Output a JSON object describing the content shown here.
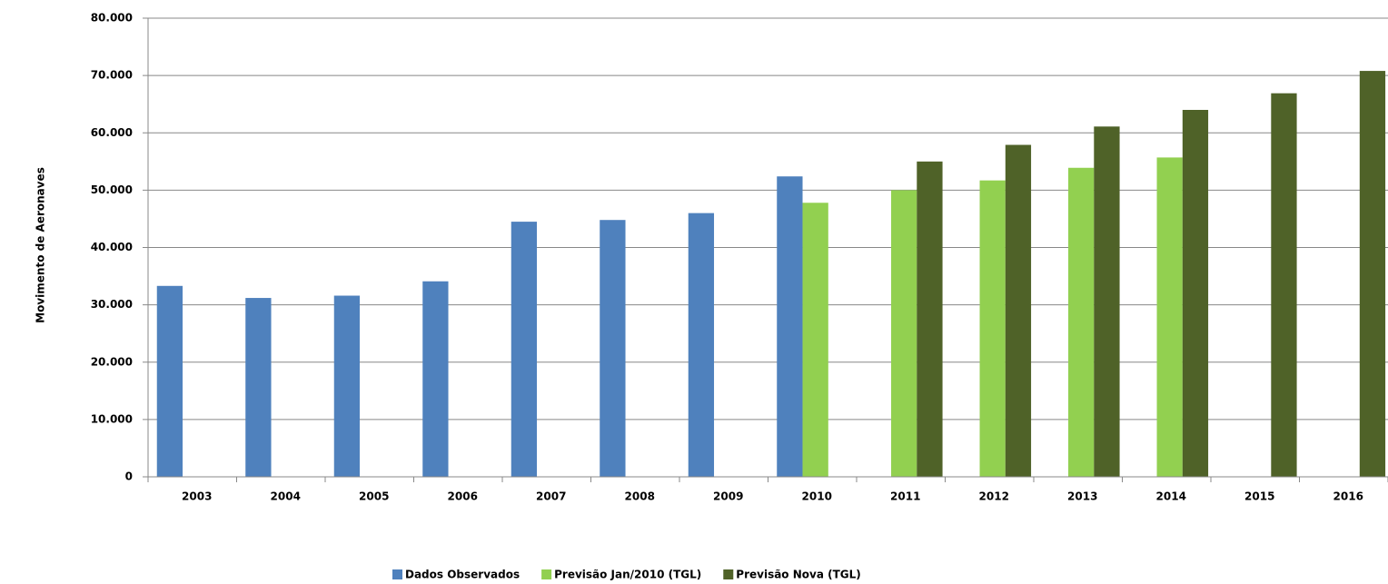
{
  "chart_data": {
    "type": "bar",
    "y_label": "Movimento de Aeronaves",
    "categories": [
      "2003",
      "2004",
      "2005",
      "2006",
      "2007",
      "2008",
      "2009",
      "2010",
      "2011",
      "2012",
      "2013",
      "2014",
      "2015",
      "2016"
    ],
    "series": [
      {
        "name": "Dados Observados",
        "color": "#4f81bd",
        "values": [
          33300,
          31200,
          31600,
          34100,
          44500,
          44800,
          46000,
          52400,
          null,
          null,
          null,
          null,
          null,
          null
        ]
      },
      {
        "name": "Previsão Jan/2010 (TGL)",
        "color": "#92d050",
        "values": [
          null,
          null,
          null,
          null,
          null,
          null,
          null,
          47800,
          50000,
          51700,
          53900,
          55700,
          null,
          null
        ]
      },
      {
        "name": "Previsão Nova (TGL)",
        "color": "#4f6228",
        "values": [
          null,
          null,
          null,
          null,
          null,
          null,
          null,
          null,
          55000,
          57900,
          61100,
          64000,
          66900,
          70800
        ]
      }
    ],
    "ylim": [
      0,
      80000
    ],
    "yticks": [
      0,
      {
        "value": 10000,
        "label": "10.000"
      },
      {
        "value": 20000,
        "label": "20.000"
      },
      {
        "value": 30000,
        "label": "30.000"
      },
      {
        "value": 40000,
        "label": "40.000"
      },
      {
        "value": 50000,
        "label": "50.000"
      },
      {
        "value": 60000,
        "label": "60.000"
      },
      {
        "value": 70000,
        "label": "70.000"
      },
      {
        "value": 80000,
        "label": "80.000"
      }
    ],
    "grid": true,
    "legend": "bottom"
  }
}
